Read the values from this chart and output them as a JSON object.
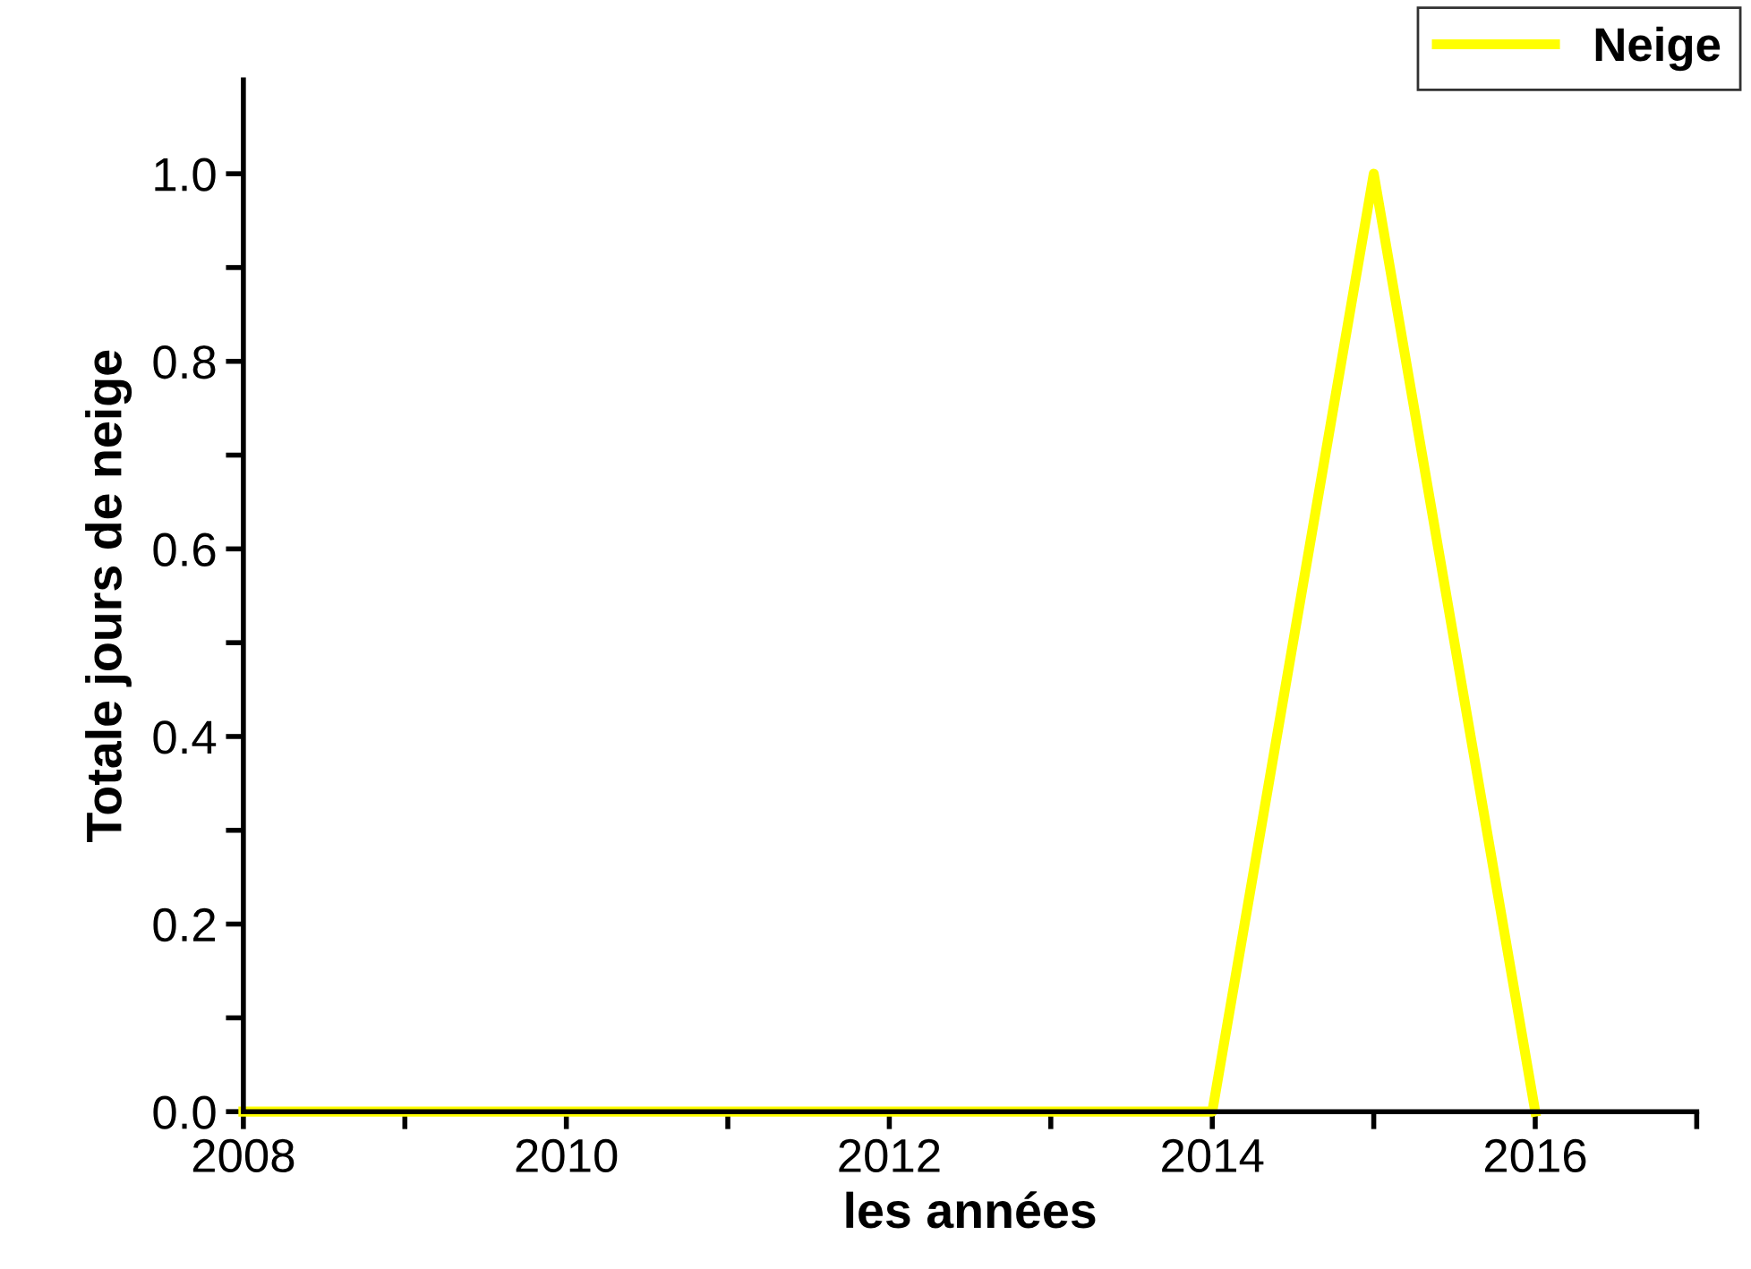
{
  "chart_data": {
    "type": "line",
    "xlabel": "les années",
    "ylabel": "Totale jours de neige",
    "x": [
      2008,
      2009,
      2010,
      2011,
      2012,
      2013,
      2014,
      2015,
      2016
    ],
    "series": [
      {
        "name": "Neige",
        "color": "#ffff00",
        "values": [
          0,
          0,
          0,
          0,
          0,
          0,
          0,
          1,
          0
        ]
      }
    ],
    "xlim": [
      2008,
      2017
    ],
    "ylim": [
      0,
      1.1
    ],
    "xticks": [
      2008,
      {
        "value": 2009,
        "label": null
      },
      2010,
      {
        "value": 2011,
        "label": null
      },
      2012,
      {
        "value": 2013,
        "label": null
      },
      2014,
      {
        "value": 2015,
        "label": null
      },
      2016,
      {
        "value": 2017,
        "label": null
      }
    ],
    "yticks": [
      {
        "value": 0,
        "label": "0.0"
      },
      {
        "value": 0.1,
        "label": null
      },
      {
        "value": 0.2,
        "label": "0.2"
      },
      {
        "value": 0.3,
        "label": null
      },
      {
        "value": 0.4,
        "label": "0.4"
      },
      {
        "value": 0.5,
        "label": null
      },
      {
        "value": 0.6,
        "label": "0.6"
      },
      {
        "value": 0.7,
        "label": null
      },
      {
        "value": 0.8,
        "label": "0.8"
      },
      {
        "value": 0.9,
        "label": null
      },
      {
        "value": 1.0,
        "label": "1.0"
      }
    ],
    "legend": "top right",
    "grid": false,
    "marker": "none",
    "line_style": "solid"
  }
}
